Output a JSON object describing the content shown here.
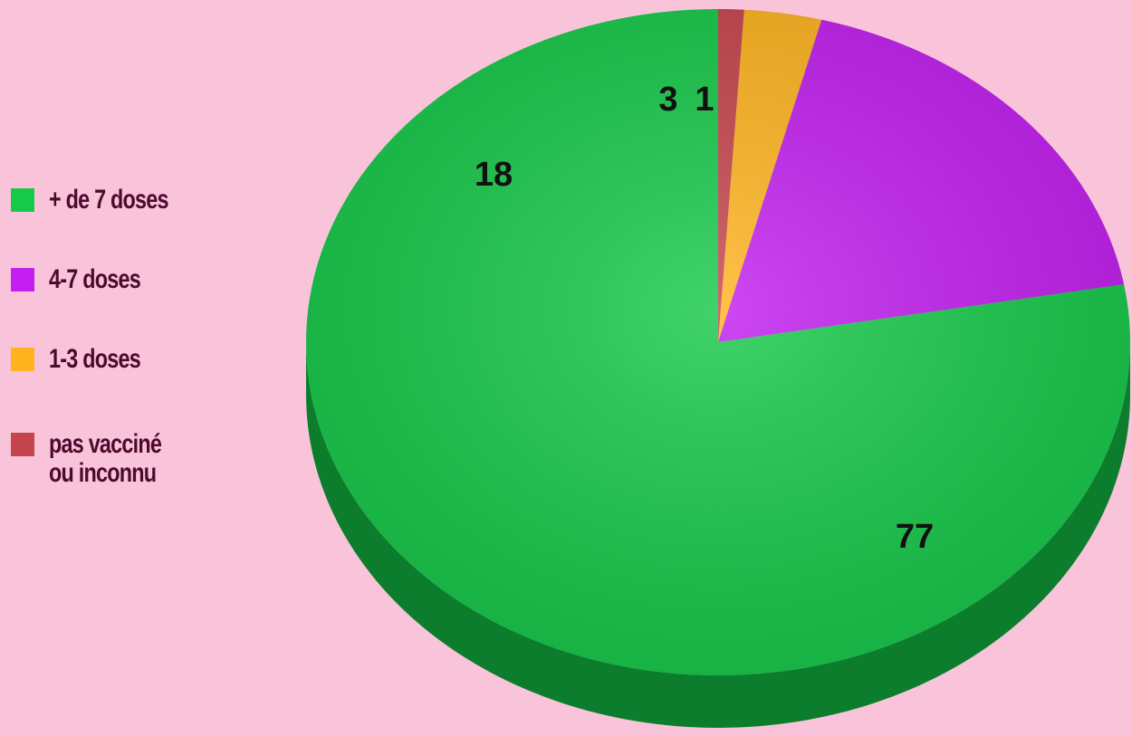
{
  "chart_data": {
    "type": "pie",
    "title": "",
    "legend_position": "left",
    "categories": [
      "+ de 7 doses",
      "4-7 doses",
      "1-3 doses",
      "pas vacciné\nou inconnu"
    ],
    "values": [
      77,
      18,
      3,
      1
    ],
    "colors": [
      "#17c94a",
      "#c21ff0",
      "#ffb41f",
      "#c6454d"
    ],
    "side_colors": [
      "#0c7d2c",
      "#7a1296",
      "#a8720f",
      "#7a2a2f"
    ],
    "data_labels": [
      "77",
      "18",
      "3",
      "1"
    ]
  }
}
